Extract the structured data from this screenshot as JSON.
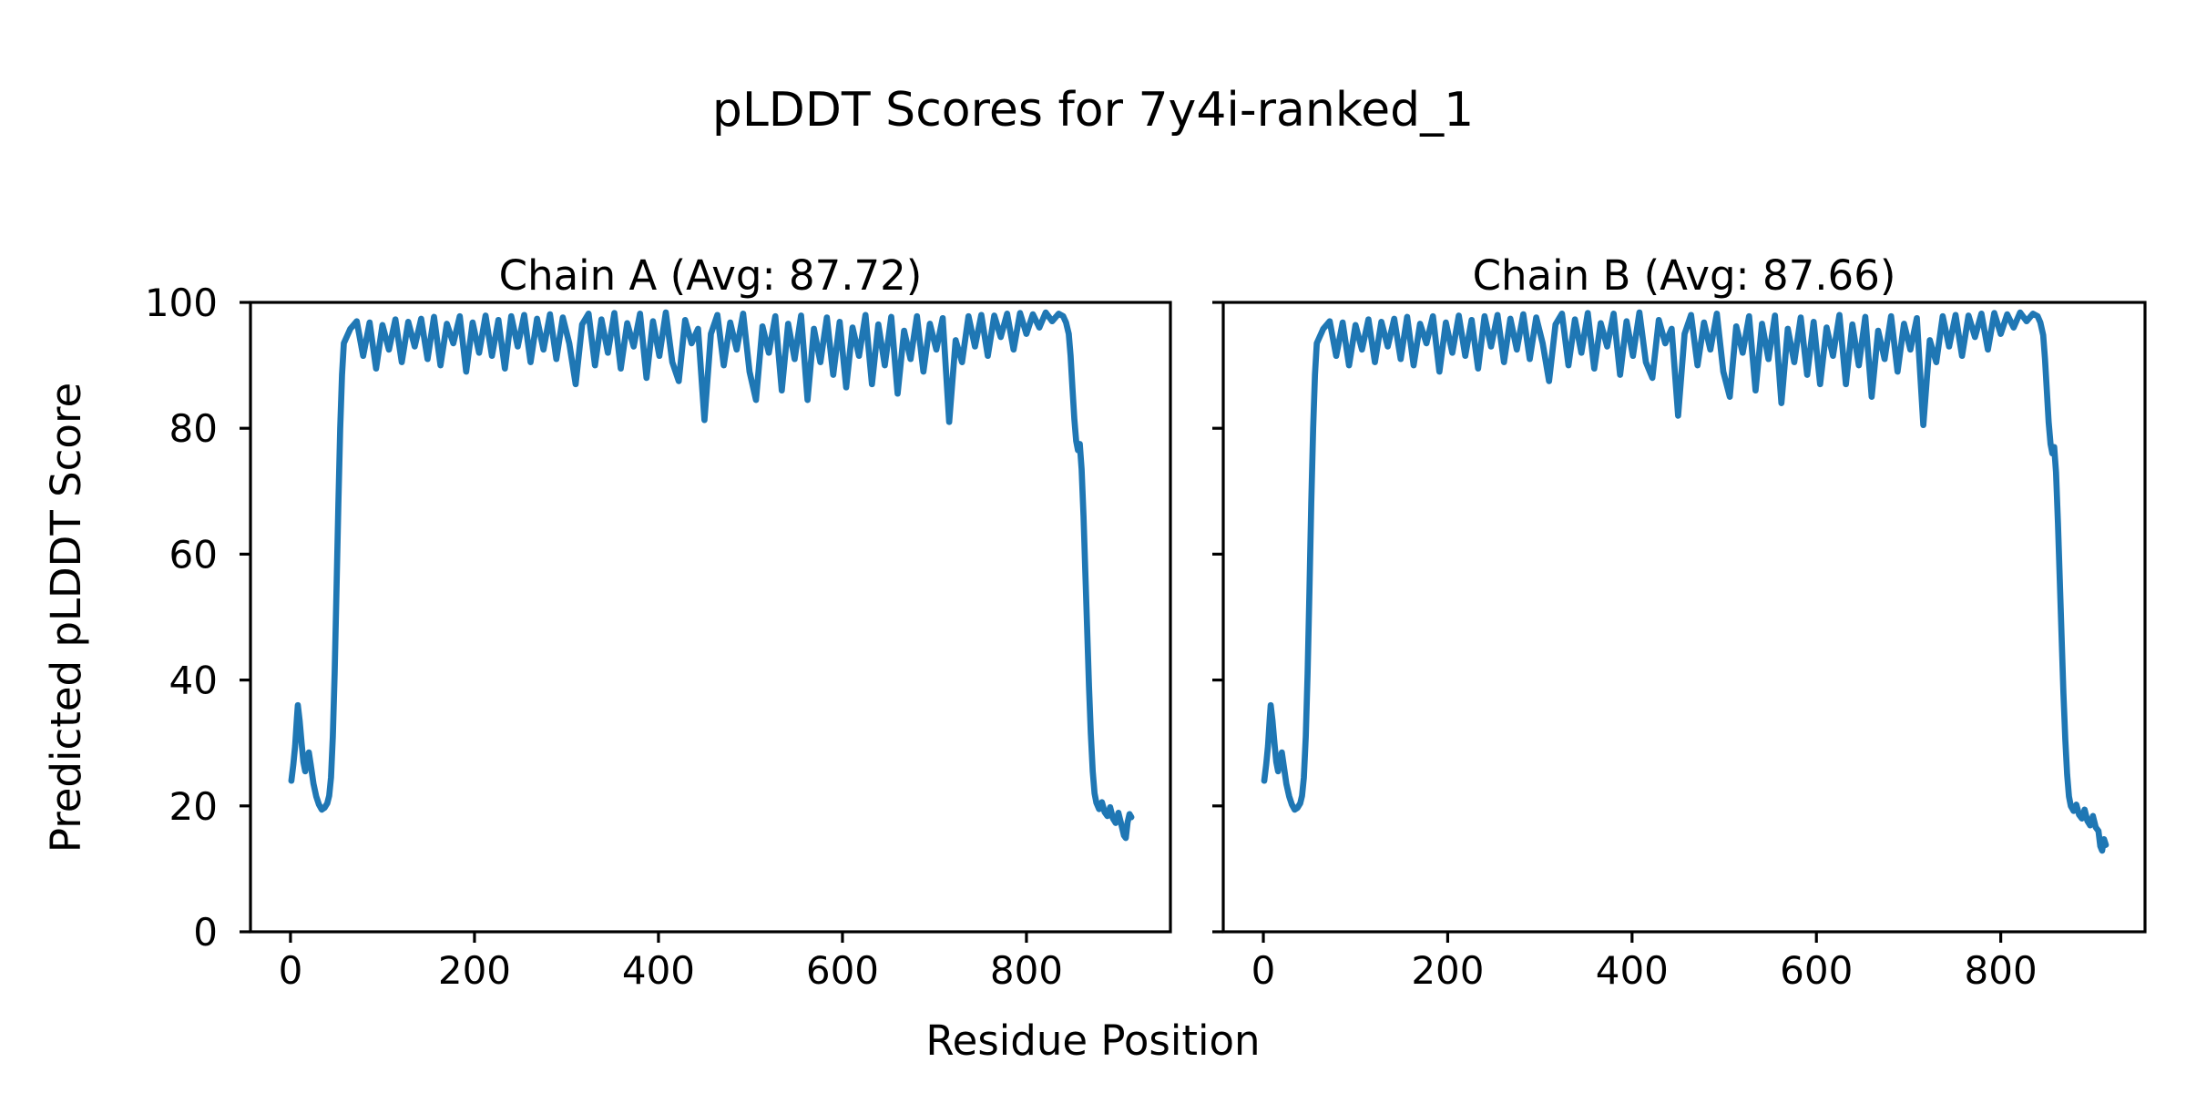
{
  "figure": {
    "suptitle": "pLDDT Scores for 7y4i-ranked_1",
    "xlabel": "Residue Position",
    "ylabel": "Predicted pLDDT Score",
    "background_color": "#ffffff",
    "text_color": "#000000"
  },
  "chart_data": [
    {
      "type": "line",
      "title": "Chain A (Avg: 87.72)",
      "chain": "A",
      "avg_plddt": 87.72,
      "line_color": "#1f77b4",
      "grid": false,
      "legend": "none",
      "xticks": [
        0,
        200,
        400,
        600,
        800
      ],
      "yticks": [
        0,
        20,
        40,
        60,
        80,
        100
      ],
      "xlim": [
        -43.5,
        956.5
      ],
      "ylim": [
        0,
        100
      ],
      "ytick_labels_visible": true,
      "points": [
        [
          1,
          24
        ],
        [
          3,
          26.5
        ],
        [
          5,
          29.5
        ],
        [
          7,
          34
        ],
        [
          8,
          36
        ],
        [
          10,
          33.5
        ],
        [
          12,
          30
        ],
        [
          14,
          27
        ],
        [
          16,
          25.5
        ],
        [
          18,
          27.5
        ],
        [
          20,
          28.5
        ],
        [
          22,
          26.5
        ],
        [
          25,
          23.5
        ],
        [
          28,
          21.5
        ],
        [
          31,
          20.2
        ],
        [
          34,
          19.4
        ],
        [
          37,
          19.7
        ],
        [
          40,
          20.4
        ],
        [
          42,
          21.6
        ],
        [
          44,
          24.5
        ],
        [
          46,
          31
        ],
        [
          48,
          41
        ],
        [
          50,
          54
        ],
        [
          52,
          68
        ],
        [
          54,
          80
        ],
        [
          56,
          88.5
        ],
        [
          58,
          93.5
        ],
        [
          65,
          95.8
        ],
        [
          72,
          97
        ],
        [
          79,
          91.5
        ],
        [
          86,
          96.8
        ],
        [
          93,
          89.5
        ],
        [
          100,
          96.4
        ],
        [
          107,
          92.5
        ],
        [
          114,
          97.3
        ],
        [
          121,
          90.5
        ],
        [
          128,
          96.9
        ],
        [
          135,
          93
        ],
        [
          142,
          97.4
        ],
        [
          149,
          91
        ],
        [
          156,
          97.7
        ],
        [
          163,
          90
        ],
        [
          170,
          96.6
        ],
        [
          177,
          93.5
        ],
        [
          184,
          97.8
        ],
        [
          191,
          89
        ],
        [
          198,
          96.8
        ],
        [
          205,
          92
        ],
        [
          212,
          97.9
        ],
        [
          219,
          91.5
        ],
        [
          226,
          97.2
        ],
        [
          233,
          89.5
        ],
        [
          240,
          97.8
        ],
        [
          247,
          93
        ],
        [
          254,
          98
        ],
        [
          261,
          90.5
        ],
        [
          268,
          97.4
        ],
        [
          275,
          92.5
        ],
        [
          282,
          98.1
        ],
        [
          289,
          91
        ],
        [
          296,
          97.6
        ],
        [
          303,
          93.5
        ],
        [
          310,
          87
        ],
        [
          317,
          96.5
        ],
        [
          324,
          98.2
        ],
        [
          331,
          90
        ],
        [
          338,
          97.3
        ],
        [
          345,
          92
        ],
        [
          352,
          98.3
        ],
        [
          359,
          89.5
        ],
        [
          366,
          96.7
        ],
        [
          373,
          93
        ],
        [
          380,
          98.2
        ],
        [
          387,
          88
        ],
        [
          394,
          97
        ],
        [
          401,
          91.5
        ],
        [
          408,
          98.4
        ],
        [
          415,
          90.5
        ],
        [
          422,
          87.5
        ],
        [
          429,
          97.2
        ],
        [
          436,
          93.5
        ],
        [
          443,
          95.8
        ],
        [
          450,
          81.3
        ],
        [
          457,
          95
        ],
        [
          464,
          98
        ],
        [
          471,
          90
        ],
        [
          478,
          96.8
        ],
        [
          485,
          92.5
        ],
        [
          492,
          98.2
        ],
        [
          499,
          89
        ],
        [
          506,
          84.5
        ],
        [
          513,
          96.2
        ],
        [
          520,
          92
        ],
        [
          527,
          97.8
        ],
        [
          534,
          86
        ],
        [
          541,
          96.6
        ],
        [
          548,
          91
        ],
        [
          555,
          97.9
        ],
        [
          562,
          84.5
        ],
        [
          569,
          95.8
        ],
        [
          576,
          90.5
        ],
        [
          583,
          97.6
        ],
        [
          590,
          88.5
        ],
        [
          597,
          96.9
        ],
        [
          604,
          86.5
        ],
        [
          611,
          96
        ],
        [
          618,
          91.5
        ],
        [
          625,
          98
        ],
        [
          632,
          87
        ],
        [
          639,
          96.5
        ],
        [
          646,
          90
        ],
        [
          653,
          97.7
        ],
        [
          660,
          85.5
        ],
        [
          667,
          95.5
        ],
        [
          674,
          91
        ],
        [
          681,
          97.8
        ],
        [
          688,
          89
        ],
        [
          695,
          96.6
        ],
        [
          702,
          92.5
        ],
        [
          709,
          97.5
        ],
        [
          716,
          81
        ],
        [
          723,
          94
        ],
        [
          730,
          90.5
        ],
        [
          737,
          97.8
        ],
        [
          744,
          93
        ],
        [
          751,
          98
        ],
        [
          758,
          91.5
        ],
        [
          765,
          97.9
        ],
        [
          772,
          94.5
        ],
        [
          779,
          98.2
        ],
        [
          786,
          92.5
        ],
        [
          793,
          98.3
        ],
        [
          800,
          95
        ],
        [
          807,
          98.1
        ],
        [
          814,
          96
        ],
        [
          821,
          98.4
        ],
        [
          828,
          97
        ],
        [
          835,
          98.2
        ],
        [
          840,
          97.8
        ],
        [
          843,
          96.8
        ],
        [
          846,
          95
        ],
        [
          848,
          91.5
        ],
        [
          850,
          86.5
        ],
        [
          852,
          81.5
        ],
        [
          854,
          78
        ],
        [
          856,
          76.5
        ],
        [
          858,
          77.5
        ],
        [
          860,
          73.5
        ],
        [
          862,
          66
        ],
        [
          864,
          57
        ],
        [
          866,
          48
        ],
        [
          868,
          39
        ],
        [
          870,
          31.5
        ],
        [
          872,
          25.5
        ],
        [
          874,
          22
        ],
        [
          876,
          20.5
        ],
        [
          879,
          19.5
        ],
        [
          882,
          20.6
        ],
        [
          885,
          19
        ],
        [
          888,
          18.4
        ],
        [
          891,
          19.8
        ],
        [
          894,
          18
        ],
        [
          897,
          17.3
        ],
        [
          900,
          18.9
        ],
        [
          903,
          17.1
        ],
        [
          906,
          15.3
        ],
        [
          908,
          14.9
        ],
        [
          910,
          17.4
        ],
        [
          912,
          18.7
        ],
        [
          914,
          18.2
        ]
      ]
    },
    {
      "type": "line",
      "title": "Chain B (Avg: 87.66)",
      "chain": "B",
      "avg_plddt": 87.66,
      "line_color": "#1f77b4",
      "grid": false,
      "legend": "none",
      "xticks": [
        0,
        200,
        400,
        600,
        800
      ],
      "yticks": [
        0,
        20,
        40,
        60,
        80,
        100
      ],
      "xlim": [
        -43.5,
        956.5
      ],
      "ylim": [
        0,
        100
      ],
      "ytick_labels_visible": false,
      "points": [
        [
          1,
          24
        ],
        [
          3,
          26.5
        ],
        [
          5,
          29.5
        ],
        [
          7,
          34
        ],
        [
          8,
          36
        ],
        [
          10,
          33.5
        ],
        [
          12,
          30
        ],
        [
          14,
          27
        ],
        [
          16,
          25.5
        ],
        [
          18,
          27.5
        ],
        [
          20,
          28.5
        ],
        [
          22,
          26.5
        ],
        [
          25,
          23.5
        ],
        [
          28,
          21.5
        ],
        [
          31,
          20.2
        ],
        [
          34,
          19.4
        ],
        [
          37,
          19.7
        ],
        [
          40,
          20.4
        ],
        [
          42,
          21.6
        ],
        [
          44,
          24.5
        ],
        [
          46,
          31
        ],
        [
          48,
          41
        ],
        [
          50,
          54
        ],
        [
          52,
          68
        ],
        [
          54,
          80
        ],
        [
          56,
          88.5
        ],
        [
          58,
          93.5
        ],
        [
          65,
          95.8
        ],
        [
          72,
          97
        ],
        [
          79,
          91.5
        ],
        [
          86,
          96.8
        ],
        [
          93,
          90
        ],
        [
          100,
          96.4
        ],
        [
          107,
          92.5
        ],
        [
          114,
          97.3
        ],
        [
          121,
          90.5
        ],
        [
          128,
          96.9
        ],
        [
          135,
          93
        ],
        [
          142,
          97.4
        ],
        [
          149,
          91
        ],
        [
          156,
          97.7
        ],
        [
          163,
          90
        ],
        [
          170,
          96.6
        ],
        [
          177,
          93.5
        ],
        [
          184,
          97.8
        ],
        [
          191,
          89
        ],
        [
          198,
          96.8
        ],
        [
          205,
          92
        ],
        [
          212,
          97.9
        ],
        [
          219,
          91.5
        ],
        [
          226,
          97.2
        ],
        [
          233,
          89.5
        ],
        [
          240,
          97.8
        ],
        [
          247,
          93
        ],
        [
          254,
          98
        ],
        [
          261,
          90.5
        ],
        [
          268,
          97.4
        ],
        [
          275,
          92.5
        ],
        [
          282,
          98.1
        ],
        [
          289,
          91
        ],
        [
          296,
          97.6
        ],
        [
          303,
          93.5
        ],
        [
          310,
          87.5
        ],
        [
          317,
          96.5
        ],
        [
          324,
          98.2
        ],
        [
          331,
          90
        ],
        [
          338,
          97.3
        ],
        [
          345,
          92
        ],
        [
          352,
          98.3
        ],
        [
          359,
          89.5
        ],
        [
          366,
          96.7
        ],
        [
          373,
          93
        ],
        [
          380,
          98.2
        ],
        [
          387,
          88.5
        ],
        [
          394,
          97
        ],
        [
          401,
          91.5
        ],
        [
          408,
          98.4
        ],
        [
          415,
          90.5
        ],
        [
          422,
          88
        ],
        [
          429,
          97.2
        ],
        [
          436,
          93.5
        ],
        [
          443,
          95.8
        ],
        [
          450,
          82
        ],
        [
          457,
          95
        ],
        [
          464,
          98
        ],
        [
          471,
          90
        ],
        [
          478,
          96.8
        ],
        [
          485,
          92.5
        ],
        [
          492,
          98.2
        ],
        [
          499,
          89
        ],
        [
          506,
          85
        ],
        [
          513,
          96.2
        ],
        [
          520,
          92
        ],
        [
          527,
          97.8
        ],
        [
          534,
          86
        ],
        [
          541,
          96.6
        ],
        [
          548,
          91
        ],
        [
          555,
          97.9
        ],
        [
          562,
          84
        ],
        [
          569,
          95.8
        ],
        [
          576,
          90.5
        ],
        [
          583,
          97.6
        ],
        [
          590,
          88.5
        ],
        [
          597,
          96.9
        ],
        [
          604,
          87
        ],
        [
          611,
          96
        ],
        [
          618,
          91.5
        ],
        [
          625,
          98
        ],
        [
          632,
          87
        ],
        [
          639,
          96.5
        ],
        [
          646,
          90
        ],
        [
          653,
          97.7
        ],
        [
          660,
          85
        ],
        [
          667,
          95.5
        ],
        [
          674,
          91
        ],
        [
          681,
          97.8
        ],
        [
          688,
          89
        ],
        [
          695,
          96.6
        ],
        [
          702,
          92.5
        ],
        [
          709,
          97.5
        ],
        [
          716,
          80.5
        ],
        [
          723,
          94
        ],
        [
          730,
          90.5
        ],
        [
          737,
          97.8
        ],
        [
          744,
          93
        ],
        [
          751,
          98
        ],
        [
          758,
          91.5
        ],
        [
          765,
          97.9
        ],
        [
          772,
          94.5
        ],
        [
          779,
          98.2
        ],
        [
          786,
          92.5
        ],
        [
          793,
          98.3
        ],
        [
          800,
          95
        ],
        [
          807,
          98.1
        ],
        [
          814,
          96
        ],
        [
          821,
          98.4
        ],
        [
          828,
          97
        ],
        [
          835,
          98.2
        ],
        [
          840,
          97.8
        ],
        [
          843,
          96.8
        ],
        [
          846,
          94.8
        ],
        [
          848,
          91
        ],
        [
          850,
          86
        ],
        [
          852,
          81
        ],
        [
          854,
          77.5
        ],
        [
          856,
          76
        ],
        [
          858,
          77
        ],
        [
          860,
          73
        ],
        [
          862,
          65
        ],
        [
          864,
          56
        ],
        [
          866,
          47
        ],
        [
          868,
          38
        ],
        [
          870,
          30.5
        ],
        [
          872,
          25
        ],
        [
          874,
          21.5
        ],
        [
          876,
          20
        ],
        [
          879,
          19.2
        ],
        [
          882,
          20.2
        ],
        [
          885,
          18.6
        ],
        [
          888,
          18
        ],
        [
          891,
          19.4
        ],
        [
          894,
          17.6
        ],
        [
          897,
          16.9
        ],
        [
          900,
          18.4
        ],
        [
          903,
          16.6
        ],
        [
          906,
          16
        ],
        [
          908,
          13.6
        ],
        [
          910,
          12.9
        ],
        [
          912,
          14.7
        ],
        [
          914,
          13.8
        ]
      ]
    }
  ]
}
